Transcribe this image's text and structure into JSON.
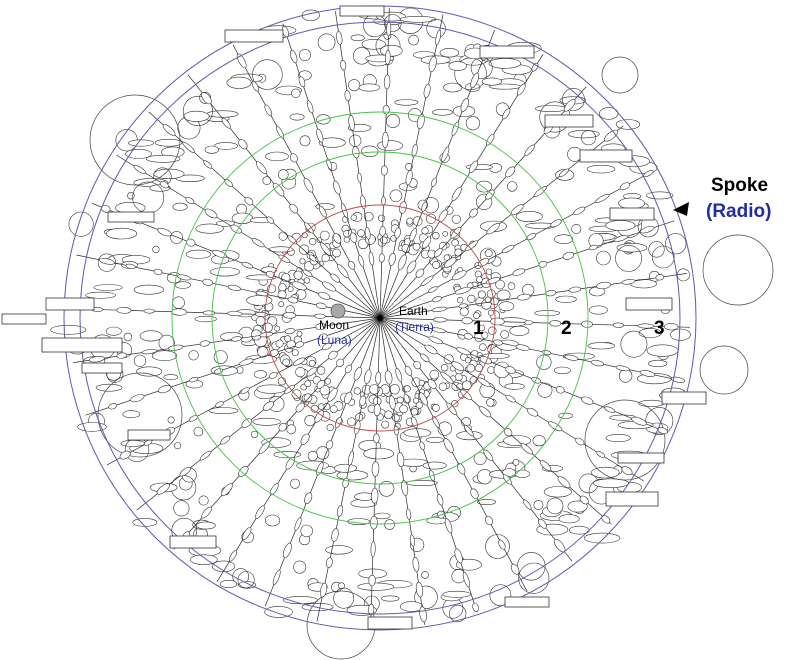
{
  "labels": {
    "earth": "Earth",
    "earth_es": "(Tierra)",
    "moon": "Moon",
    "moon_es": "(Luna)",
    "ring_1": "1",
    "ring_2": "2",
    "ring_3": "3",
    "spoke": "Spoke",
    "spoke_es": "(Radio)"
  },
  "colors": {
    "outer_ring": "#5a5ab4",
    "middle_ring": "#44c444",
    "inner_ring": "#c44848",
    "spanish_text": "#1f2ea8",
    "moon_fill": "#a8a8a8",
    "earth_hatch": "#c8c0a8"
  },
  "diagram": {
    "spoke_count": 36,
    "concentric_rings": 3
  }
}
